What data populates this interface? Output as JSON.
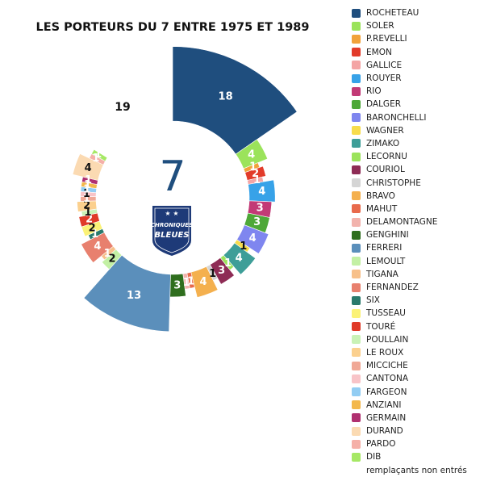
{
  "title": "LES PORTEURS DU 7 ENTRE 1975 ET 1989",
  "center": {
    "number": "7",
    "logo_line1": "CHRONIQUES",
    "logo_line2": "BLEUES"
  },
  "chart_data": {
    "type": "pie",
    "subtype": "donut",
    "title": "LES PORTEURS DU 7 ENTRE 1975 ET 1989",
    "legend_position": "right",
    "series": [
      {
        "name": "ROCHETEAU",
        "value": 18,
        "color": "#1f4e7e"
      },
      {
        "name": "SOLER",
        "value": 4,
        "color": "#9be35b"
      },
      {
        "name": "P.REVELLI",
        "value": 1,
        "color": "#f1a23a"
      },
      {
        "name": "EMON",
        "value": 2,
        "color": "#e23b2a"
      },
      {
        "name": "GALLICE",
        "value": 1,
        "color": "#f4a5a5"
      },
      {
        "name": "ROUYER",
        "value": 4,
        "color": "#37a2e8"
      },
      {
        "name": "RIO",
        "value": 3,
        "color": "#c23a76"
      },
      {
        "name": "DALGER",
        "value": 3,
        "color": "#4ea838"
      },
      {
        "name": "BARONCHELLI",
        "value": 4,
        "color": "#7f86ef"
      },
      {
        "name": "WAGNER",
        "value": 1,
        "color": "#f7dc4c"
      },
      {
        "name": "ZIMAKO",
        "value": 4,
        "color": "#3e9e98"
      },
      {
        "name": "LECORNU",
        "value": 1,
        "color": "#9be35b"
      },
      {
        "name": "COURIOL",
        "value": 3,
        "color": "#8e2c55"
      },
      {
        "name": "CHRISTOPHE",
        "value": 1,
        "color": "#d5d5d5"
      },
      {
        "name": "BRAVO",
        "value": 4,
        "color": "#f4b04e"
      },
      {
        "name": "MAHUT",
        "value": 1,
        "color": "#e86a4c"
      },
      {
        "name": "DELAMONTAGNE",
        "value": 1,
        "color": "#f2b3ad"
      },
      {
        "name": "GENGHINI",
        "value": 3,
        "color": "#2f6e1e"
      },
      {
        "name": "FERRERI",
        "value": 13,
        "color": "#5b8fbb"
      },
      {
        "name": "LEMOULT",
        "value": 2,
        "color": "#c3f0a4"
      },
      {
        "name": "TIGANA",
        "value": 1,
        "color": "#f7c08a"
      },
      {
        "name": "FERNANDEZ",
        "value": 4,
        "color": "#e8806e"
      },
      {
        "name": "SIX",
        "value": 1,
        "color": "#2a7a6c"
      },
      {
        "name": "TUSSEAU",
        "value": 2,
        "color": "#fbf277"
      },
      {
        "name": "TOURÉ",
        "value": 2,
        "color": "#e03a28"
      },
      {
        "name": "POULLAIN",
        "value": 1,
        "color": "#c9f2b6"
      },
      {
        "name": "LE ROUX",
        "value": 2,
        "color": "#fbd08e"
      },
      {
        "name": "MICCICHE",
        "value": 1,
        "color": "#f0a896"
      },
      {
        "name": "CANTONA",
        "value": 1,
        "color": "#f8c4c8"
      },
      {
        "name": "FARGEON",
        "value": 1,
        "color": "#92cdf3"
      },
      {
        "name": "ANZIANI",
        "value": 1,
        "color": "#f3b84c"
      },
      {
        "name": "GERMAIN",
        "value": 1,
        "color": "#b03070"
      },
      {
        "name": "DURAND",
        "value": 4,
        "color": "#fbdab2"
      },
      {
        "name": "PARDO",
        "value": 1,
        "color": "#f5b0a8"
      },
      {
        "name": "DIB",
        "value": 1,
        "color": "#a6e865"
      }
    ],
    "remainder": {
      "name": "remplaçants non entrés",
      "value": 19
    }
  }
}
